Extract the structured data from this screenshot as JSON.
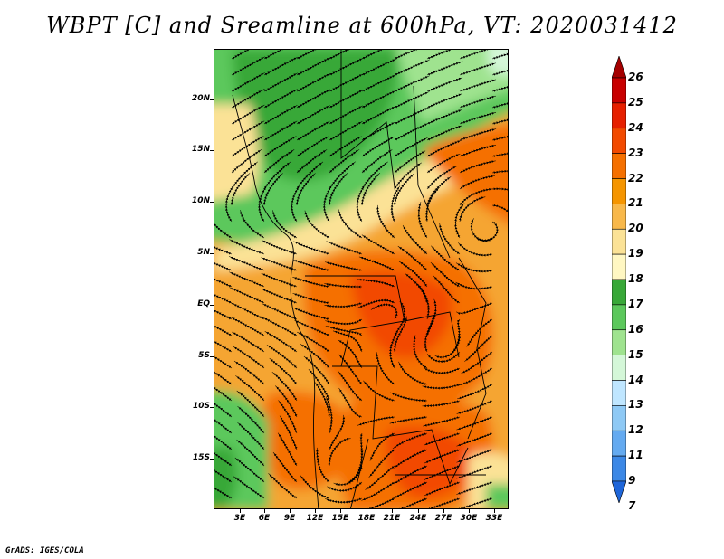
{
  "title": "WBPT [C] and Sreamline at 600hPa, VT: 2020031412",
  "credit": "GrADS: IGES/COLA",
  "lat_labels": [
    "20N",
    "15N",
    "10N",
    "5N",
    "EQ",
    "5S",
    "10S",
    "15S"
  ],
  "lon_labels": [
    "3E",
    "6E",
    "9E",
    "12E",
    "15E",
    "18E",
    "21E",
    "24E",
    "27E",
    "30E",
    "33E"
  ],
  "colorbar": {
    "labels": [
      "26",
      "25",
      "24",
      "23",
      "22",
      "21",
      "20",
      "19",
      "18",
      "17",
      "16",
      "15",
      "14",
      "13",
      "12",
      "11",
      "9",
      "7"
    ],
    "colors": [
      "#a50000",
      "#c80000",
      "#e62000",
      "#f24a00",
      "#f57000",
      "#f59500",
      "#f8b84a",
      "#fbe296",
      "#fff7c2",
      "#38a838",
      "#5cc85c",
      "#9fe38f",
      "#d4f7d8",
      "#bfe6ff",
      "#8ec9f5",
      "#64aaf0",
      "#3c88e6",
      "#1f66d9"
    ]
  }
}
